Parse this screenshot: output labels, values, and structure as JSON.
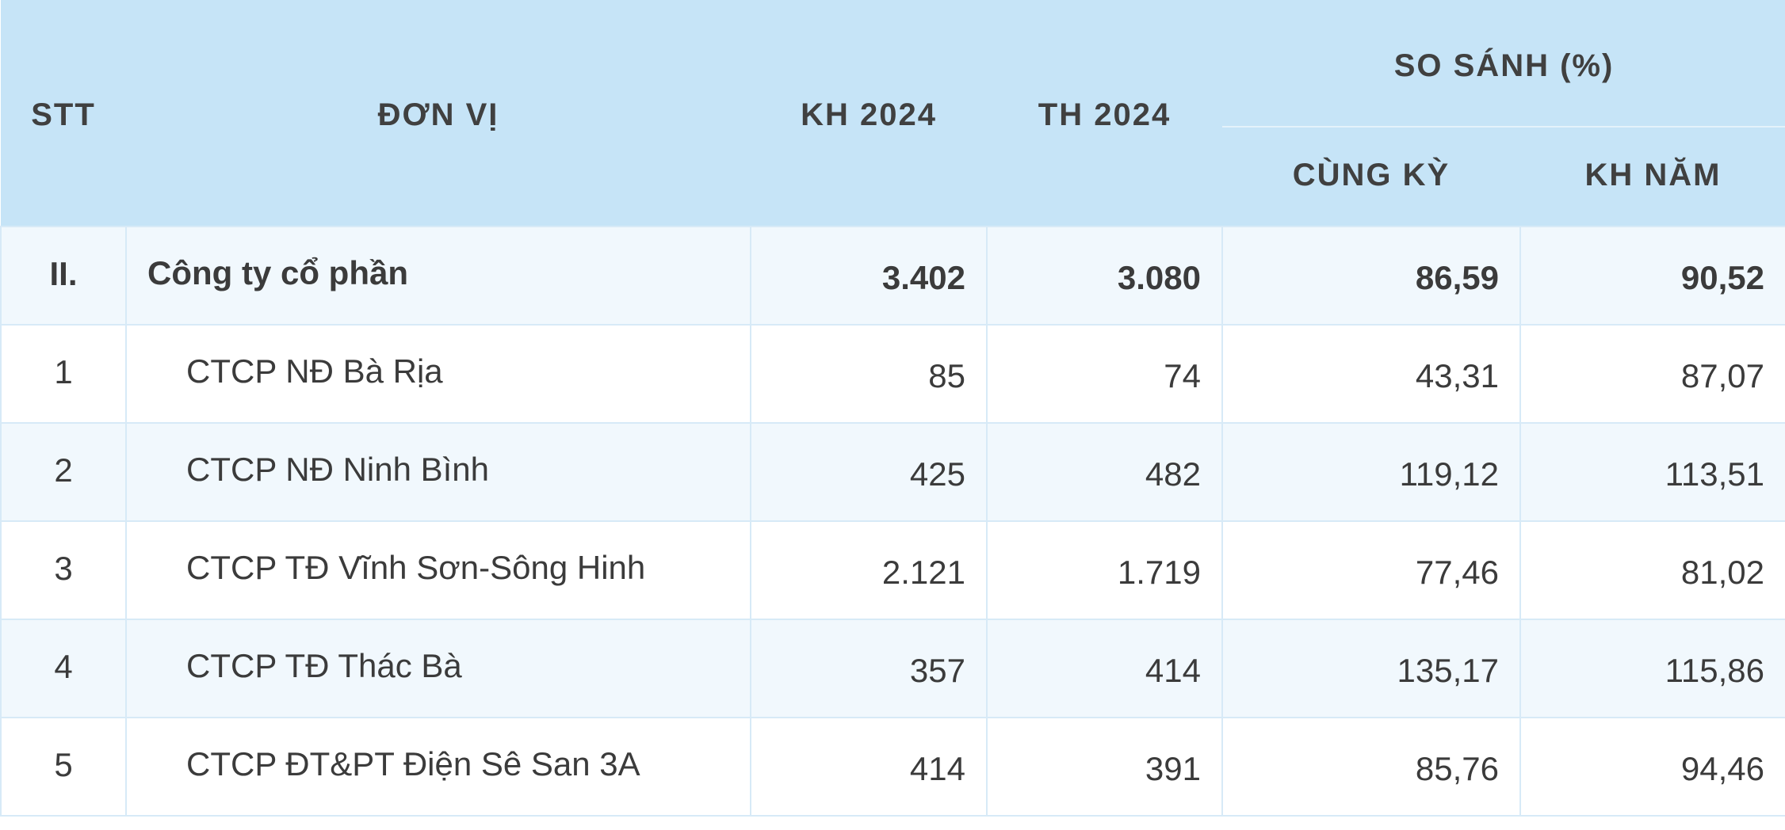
{
  "chart_data": {
    "type": "table",
    "columns": [
      "STT",
      "ĐƠN VỊ",
      "KH 2024",
      "TH 2024",
      "CÙNG KỲ",
      "KH NĂM"
    ],
    "column_group": {
      "label": "SO SÁNH (%)",
      "columns": [
        4,
        5
      ]
    },
    "rows": [
      [
        "II.",
        "Công ty cổ phần",
        "3.402",
        "3.080",
        "86,59",
        "90,52"
      ],
      [
        "1",
        "CTCP NĐ Bà Rịa",
        "85",
        "74",
        "43,31",
        "87,07"
      ],
      [
        "2",
        "CTCP NĐ Ninh Bình",
        "425",
        "482",
        "119,12",
        "113,51"
      ],
      [
        "3",
        "CTCP TĐ Vĩnh Sơn-Sông Hinh",
        "2.121",
        "1.719",
        "77,46",
        "81,02"
      ],
      [
        "4",
        "CTCP TĐ Thác Bà",
        "357",
        "414",
        "135,17",
        "115,86"
      ],
      [
        "5",
        "CTCP ĐT&PT Điện Sê San 3A",
        "414",
        "391",
        "85,76",
        "94,46"
      ]
    ]
  },
  "colors": {
    "header_bg": "#c6e4f7",
    "row_alt_bg": "#f1f8fd",
    "row_bg": "#ffffff",
    "border": "#d7eaf7",
    "text": "#3b3b3b"
  }
}
